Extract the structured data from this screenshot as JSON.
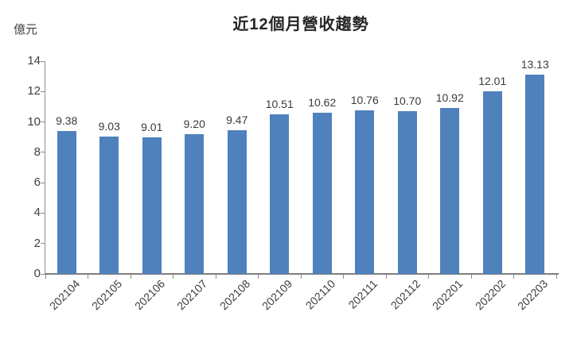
{
  "chart_data": {
    "type": "bar",
    "title": "近12個月營收趨勢",
    "ylabel": "億元",
    "xlabel": "",
    "categories": [
      "202104",
      "202105",
      "202106",
      "202107",
      "202108",
      "202109",
      "202110",
      "202111",
      "202112",
      "202201",
      "202202",
      "202203"
    ],
    "values": [
      9.38,
      9.03,
      9.01,
      9.2,
      9.47,
      10.51,
      10.62,
      10.76,
      10.7,
      10.92,
      12.01,
      13.13
    ],
    "value_labels": [
      "9.38",
      "9.03",
      "9.01",
      "9.20",
      "9.47",
      "10.51",
      "10.62",
      "10.76",
      "10.70",
      "10.92",
      "12.01",
      "13.13"
    ],
    "ylim": [
      0,
      14
    ],
    "ytick_step": 2,
    "ytick_labels": [
      "0",
      "2",
      "4",
      "6",
      "8",
      "10",
      "12",
      "14"
    ],
    "bar_color": "#4f81bd",
    "grid": false,
    "legend_position": "none"
  }
}
